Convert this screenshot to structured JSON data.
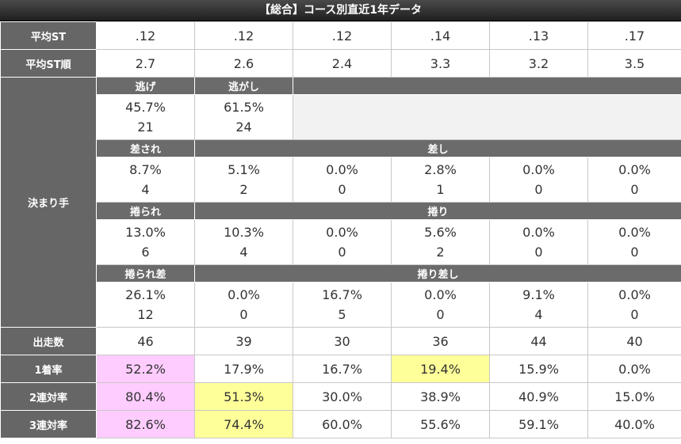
{
  "title": "【総合】コース別直近1年データ",
  "rows": {
    "avg_st": {
      "label": "平均ST",
      "values": [
        ".12",
        ".12",
        ".12",
        ".14",
        ".13",
        ".17"
      ]
    },
    "avg_st_rank": {
      "label": "平均ST順",
      "values": [
        "2.7",
        "2.6",
        "2.4",
        "3.3",
        "3.2",
        "3.5"
      ]
    },
    "kimarite": {
      "label": "決まり手",
      "nige": {
        "header": "逃げ",
        "pct": "45.7%",
        "count": "21"
      },
      "nigashi": {
        "header": "逃がし",
        "pct": "61.5%",
        "count": "24"
      },
      "sasare": {
        "header": "差され",
        "pct": "8.7%",
        "count": "4"
      },
      "sashi": {
        "header": "差し",
        "cells": [
          {
            "pct": "5.1%",
            "count": "2"
          },
          {
            "pct": "0.0%",
            "count": "0"
          },
          {
            "pct": "2.8%",
            "count": "1"
          },
          {
            "pct": "0.0%",
            "count": "0"
          },
          {
            "pct": "0.0%",
            "count": "0"
          }
        ]
      },
      "makurare": {
        "header": "捲られ",
        "pct": "13.0%",
        "count": "6"
      },
      "makuri": {
        "header": "捲り",
        "cells": [
          {
            "pct": "10.3%",
            "count": "4"
          },
          {
            "pct": "0.0%",
            "count": "0"
          },
          {
            "pct": "5.6%",
            "count": "2"
          },
          {
            "pct": "0.0%",
            "count": "0"
          },
          {
            "pct": "0.0%",
            "count": "0"
          }
        ]
      },
      "makurare_sa": {
        "header": "捲られ差",
        "pct": "26.1%",
        "count": "12"
      },
      "makuri_sashi": {
        "header": "捲り差し",
        "cells": [
          {
            "pct": "0.0%",
            "count": "0"
          },
          {
            "pct": "16.7%",
            "count": "5"
          },
          {
            "pct": "0.0%",
            "count": "0"
          },
          {
            "pct": "9.1%",
            "count": "4"
          },
          {
            "pct": "0.0%",
            "count": "0"
          }
        ]
      }
    },
    "starts": {
      "label": "出走数",
      "values": [
        "46",
        "39",
        "30",
        "36",
        "44",
        "40"
      ]
    },
    "win_rate": {
      "label": "1着率",
      "values": [
        "52.2%",
        "17.9%",
        "16.7%",
        "19.4%",
        "15.9%",
        "0.0%"
      ]
    },
    "top2_rate": {
      "label": "2連対率",
      "values": [
        "80.4%",
        "51.3%",
        "30.0%",
        "38.9%",
        "40.9%",
        "15.0%"
      ]
    },
    "top3_rate": {
      "label": "3連対率",
      "values": [
        "82.6%",
        "74.4%",
        "60.0%",
        "55.6%",
        "59.1%",
        "40.0%"
      ]
    }
  },
  "highlight_colors": {
    "pink": "#ffccff",
    "yellow": "#ffff99",
    "header_gray": "#666666"
  }
}
